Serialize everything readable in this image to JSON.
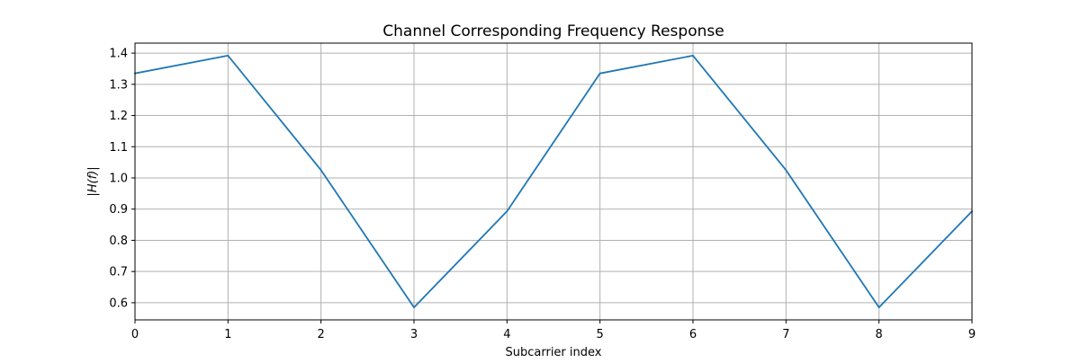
{
  "chart_data": {
    "type": "line",
    "title": "Channel Corresponding Frequency Response",
    "xlabel": "Subcarrier index",
    "ylabel": "|H(f)|",
    "x": [
      0,
      1,
      2,
      3,
      4,
      5,
      6,
      7,
      8,
      9
    ],
    "series": [
      {
        "name": "",
        "values": [
          1.335,
          1.392,
          1.025,
          0.585,
          0.893,
          1.335,
          1.392,
          1.025,
          0.585,
          0.893
        ],
        "color": "#1f77b4"
      }
    ],
    "xlim": [
      0,
      9
    ],
    "ylim": [
      0.545,
      1.432
    ],
    "xticks": [
      0,
      1,
      2,
      3,
      4,
      5,
      6,
      7,
      8,
      9
    ],
    "xtick_labels": [
      "0",
      "1",
      "2",
      "3",
      "4",
      "5",
      "6",
      "7",
      "8",
      "9"
    ],
    "yticks": [
      0.6,
      0.7,
      0.8,
      0.9,
      1.0,
      1.1,
      1.2,
      1.3,
      1.4
    ],
    "ytick_labels": [
      "0.6",
      "0.7",
      "0.8",
      "0.9",
      "1.0",
      "1.1",
      "1.2",
      "1.3",
      "1.4"
    ],
    "grid": true,
    "grid_color": "#b0b0b0",
    "legend": "none"
  }
}
